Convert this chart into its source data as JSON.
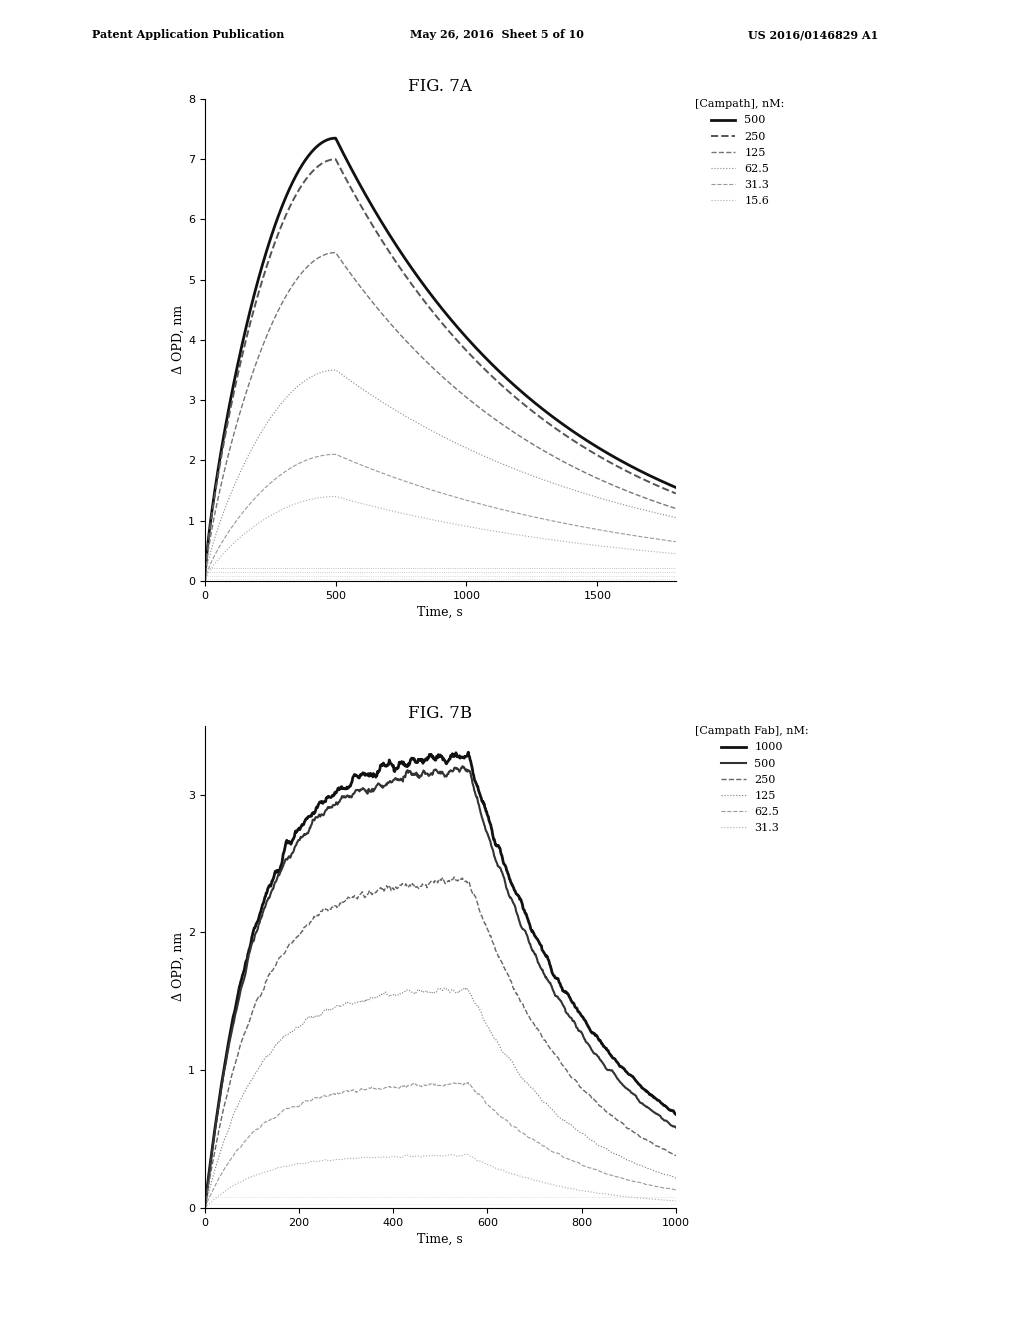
{
  "fig7a": {
    "title": "FIG. 7A",
    "xlabel": "Time, s",
    "ylabel": "Δ OPD, nm",
    "legend_title": "[Campath], nM:",
    "legend_labels": [
      "500",
      "250",
      "125",
      "62.5",
      "31.3",
      "15.6"
    ],
    "xlim": [
      0,
      1800
    ],
    "ylim": [
      0,
      8
    ],
    "yticks": [
      0,
      1,
      2,
      3,
      4,
      5,
      6,
      7,
      8
    ],
    "xticks": [
      0,
      500,
      1000,
      1500
    ],
    "peak_time": 500,
    "total_time": 1800,
    "peak_values": [
      7.35,
      7.0,
      5.45,
      3.5,
      2.1,
      1.4
    ],
    "end_values": [
      1.55,
      1.45,
      1.2,
      1.05,
      0.65,
      0.45
    ],
    "line_styles": [
      "-",
      "--",
      "--",
      ":",
      "--",
      ":"
    ],
    "line_widths": [
      2.0,
      1.4,
      1.0,
      0.8,
      0.8,
      0.8
    ],
    "line_colors": [
      "#111111",
      "#555555",
      "#777777",
      "#888888",
      "#999999",
      "#aaaaaa"
    ],
    "near_zero_values": [
      0.22,
      0.14,
      0.08,
      0.03
    ],
    "near_zero_colors": [
      "#aaaaaa",
      "#bbbbbb",
      "#cccccc",
      "#dddddd"
    ]
  },
  "fig7b": {
    "title": "FIG. 7B",
    "xlabel": "Time, s",
    "ylabel": "Δ OPD, nm",
    "legend_title": "[Campath Fab], nM:",
    "legend_labels": [
      "1000",
      "500",
      "250",
      "125",
      "62.5",
      "31.3"
    ],
    "xlim": [
      0,
      1000
    ],
    "ylim": [
      0,
      3.5
    ],
    "yticks": [
      0,
      1,
      2,
      3
    ],
    "xticks": [
      0,
      200,
      400,
      600,
      800,
      1000
    ],
    "assoc_end": 560,
    "total_time": 1000,
    "peak_values": [
      3.28,
      3.18,
      2.38,
      1.58,
      0.9,
      0.38
    ],
    "end_values": [
      0.68,
      0.58,
      0.38,
      0.22,
      0.13,
      0.05
    ],
    "plateau_noise": [
      0.06,
      0.05,
      0.04,
      0.03,
      0.02,
      0.01
    ],
    "line_styles": [
      "-",
      "-",
      "--",
      ":",
      "--",
      ":"
    ],
    "line_widths": [
      2.0,
      1.5,
      1.0,
      0.8,
      0.8,
      0.8
    ],
    "line_colors": [
      "#111111",
      "#333333",
      "#666666",
      "#777777",
      "#999999",
      "#aaaaaa"
    ],
    "near_zero_values": [
      0.08,
      0.03
    ],
    "near_zero_colors": [
      "#cccccc",
      "#dddddd"
    ]
  },
  "header_left": "Patent Application Publication",
  "header_mid": "May 26, 2016  Sheet 5 of 10",
  "header_right": "US 2016/0146829 A1",
  "bg_color": "#ffffff",
  "fig_width": 10.24,
  "fig_height": 13.2,
  "dpi": 100
}
